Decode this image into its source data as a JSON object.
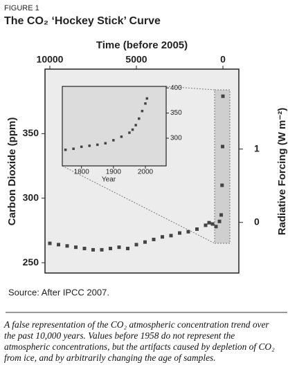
{
  "figure_label": "FIGURE 1",
  "title": "The CO₂ ‘Hockey Stick’ Curve",
  "chart_data": [
    {
      "type": "scatter",
      "x_label": "Time (before 2005)",
      "y_label": "Carbon Dioxide (ppm)",
      "y2_label": "Radiative Forcing (W m⁻²)",
      "x": [
        10000,
        9500,
        9000,
        8500,
        8000,
        7500,
        7000,
        6500,
        6000,
        5500,
        5000,
        4500,
        4000,
        3500,
        3000,
        2500,
        2000,
        1500,
        1000,
        800,
        600,
        400,
        200,
        100,
        50,
        20,
        0
      ],
      "values": [
        265,
        264,
        263,
        262,
        261,
        260,
        260,
        261,
        262,
        261,
        264,
        266,
        268,
        270,
        271,
        273,
        274,
        276,
        279,
        281,
        280,
        278,
        282,
        287,
        310,
        340,
        379
      ],
      "color": "#444444",
      "xlim": [
        10280,
        -920
      ],
      "xticks": [
        10000,
        5000,
        0
      ],
      "ylim": [
        242,
        400
      ],
      "yticks": [
        250,
        300,
        350
      ],
      "y2lim": [
        -0.69,
        2.09
      ],
      "y2ticks": [
        0,
        1
      ]
    },
    {
      "type": "scatter",
      "x_label": "Year",
      "x": [
        1750,
        1775,
        1800,
        1825,
        1850,
        1875,
        1900,
        1925,
        1950,
        1960,
        1970,
        1980,
        1990,
        2000,
        2005
      ],
      "values": [
        277,
        279,
        283,
        285,
        287,
        290,
        296,
        303,
        311,
        317,
        326,
        339,
        354,
        369,
        379
      ],
      "color": "#444444",
      "xlim": [
        1740,
        2065
      ],
      "xticks": [
        1800,
        1900,
        2000
      ],
      "ylim": [
        245,
        403
      ],
      "yticks": [
        300,
        350,
        400
      ]
    }
  ],
  "source": "Source: After IPCC 2007.",
  "caption": "A false representation of the CO₂ atmospheric concentration trend over the past 10,000 years. Values before 1958 do not represent the atmospheric concentrations, but the artifacts caused by depletion of CO₂ from ice, and by arbitrarily changing the age of samples."
}
